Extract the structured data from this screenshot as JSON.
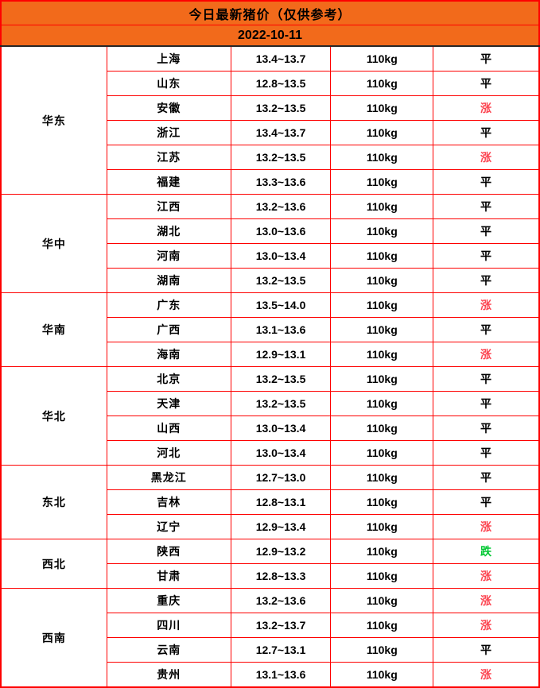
{
  "header": {
    "title": "今日最新猪价（仅供参考）",
    "date": "2022-10-11"
  },
  "colors": {
    "header_bg": "#f26a1b",
    "border": "#fe0000",
    "dark_line": "#262626",
    "trend_up": "#fc4652",
    "trend_down": "#00c832",
    "trend_flat": "#000000"
  },
  "chart_data": {
    "type": "table",
    "title": "今日最新猪价（仅供参考）",
    "date": "2022-10-11",
    "column_keys": [
      "region",
      "province",
      "price_range",
      "weight",
      "trend"
    ],
    "groups": [
      {
        "region": "华东",
        "rows": [
          {
            "province": "上海",
            "price": "13.4~13.7",
            "weight": "110kg",
            "trend": "平"
          },
          {
            "province": "山东",
            "price": "12.8~13.5",
            "weight": "110kg",
            "trend": "平"
          },
          {
            "province": "安徽",
            "price": "13.2~13.5",
            "weight": "110kg",
            "trend": "涨"
          },
          {
            "province": "浙江",
            "price": "13.4~13.7",
            "weight": "110kg",
            "trend": "平"
          },
          {
            "province": "江苏",
            "price": "13.2~13.5",
            "weight": "110kg",
            "trend": "涨"
          },
          {
            "province": "福建",
            "price": "13.3~13.6",
            "weight": "110kg",
            "trend": "平"
          }
        ]
      },
      {
        "region": "华中",
        "rows": [
          {
            "province": "江西",
            "price": "13.2~13.6",
            "weight": "110kg",
            "trend": "平"
          },
          {
            "province": "湖北",
            "price": "13.0~13.6",
            "weight": "110kg",
            "trend": "平"
          },
          {
            "province": "河南",
            "price": "13.0~13.4",
            "weight": "110kg",
            "trend": "平"
          },
          {
            "province": "湖南",
            "price": "13.2~13.5",
            "weight": "110kg",
            "trend": "平"
          }
        ]
      },
      {
        "region": "华南",
        "rows": [
          {
            "province": "广东",
            "price": "13.5~14.0",
            "weight": "110kg",
            "trend": "涨"
          },
          {
            "province": "广西",
            "price": "13.1~13.6",
            "weight": "110kg",
            "trend": "平"
          },
          {
            "province": "海南",
            "price": "12.9~13.1",
            "weight": "110kg",
            "trend": "涨"
          }
        ]
      },
      {
        "region": "华北",
        "rows": [
          {
            "province": "北京",
            "price": "13.2~13.5",
            "weight": "110kg",
            "trend": "平"
          },
          {
            "province": "天津",
            "price": "13.2~13.5",
            "weight": "110kg",
            "trend": "平"
          },
          {
            "province": "山西",
            "price": "13.0~13.4",
            "weight": "110kg",
            "trend": "平"
          },
          {
            "province": "河北",
            "price": "13.0~13.4",
            "weight": "110kg",
            "trend": "平"
          }
        ]
      },
      {
        "region": "东北",
        "rows": [
          {
            "province": "黑龙江",
            "price": "12.7~13.0",
            "weight": "110kg",
            "trend": "平"
          },
          {
            "province": "吉林",
            "price": "12.8~13.1",
            "weight": "110kg",
            "trend": "平"
          },
          {
            "province": "辽宁",
            "price": "12.9~13.4",
            "weight": "110kg",
            "trend": "涨"
          }
        ]
      },
      {
        "region": "西北",
        "rows": [
          {
            "province": "陕西",
            "price": "12.9~13.2",
            "weight": "110kg",
            "trend": "跌"
          },
          {
            "province": "甘肃",
            "price": "12.8~13.3",
            "weight": "110kg",
            "trend": "涨"
          }
        ]
      },
      {
        "region": "西南",
        "rows": [
          {
            "province": "重庆",
            "price": "13.2~13.6",
            "weight": "110kg",
            "trend": "涨"
          },
          {
            "province": "四川",
            "price": "13.2~13.7",
            "weight": "110kg",
            "trend": "涨"
          },
          {
            "province": "云南",
            "price": "12.7~13.1",
            "weight": "110kg",
            "trend": "平"
          },
          {
            "province": "贵州",
            "price": "13.1~13.6",
            "weight": "110kg",
            "trend": "涨"
          }
        ]
      }
    ]
  }
}
